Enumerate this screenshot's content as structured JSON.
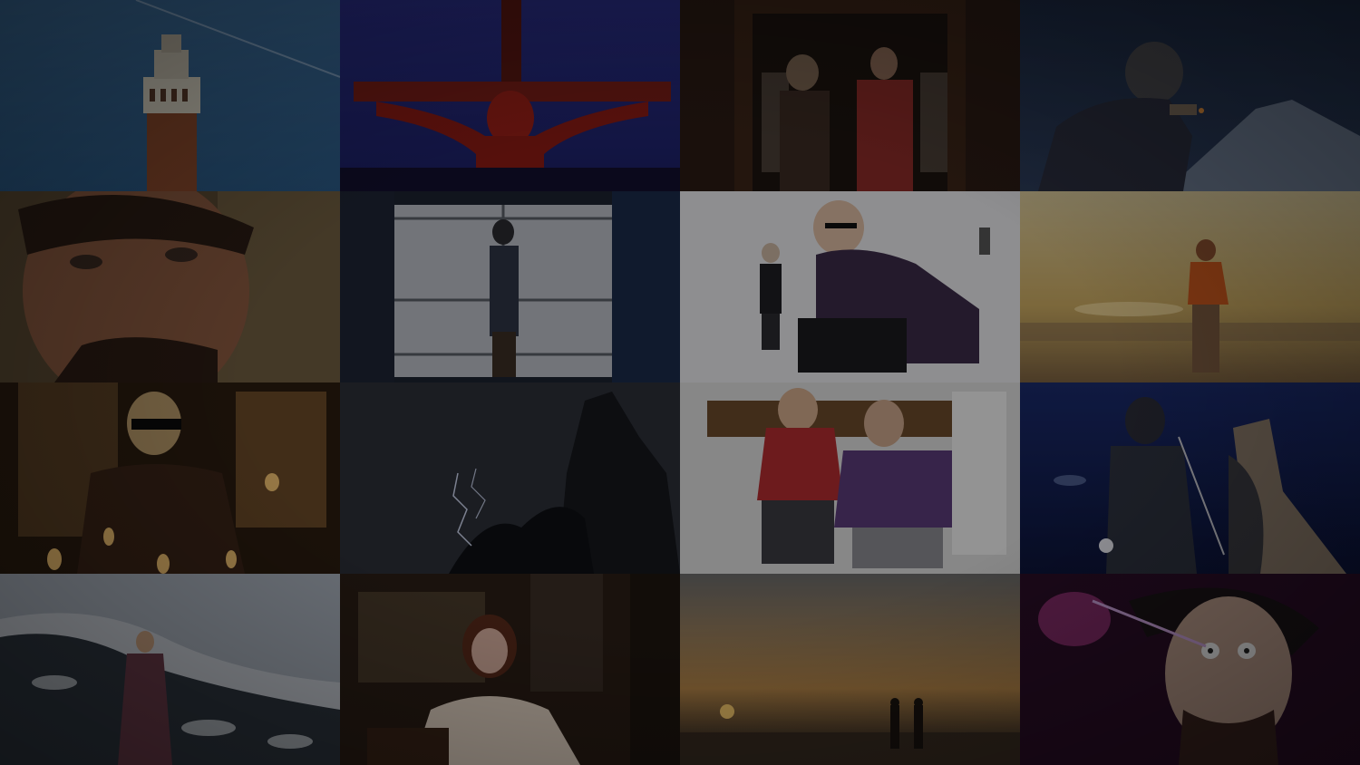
{
  "gallery": {
    "tiles": [
      {
        "id": "tower-sky",
        "accent": "#2f5f8e"
      },
      {
        "id": "crucifix-red-blue",
        "accent": "#a0221c"
      },
      {
        "id": "duo-in-doorway",
        "accent": "#7a2a28"
      },
      {
        "id": "smoker-night-mountains",
        "accent": "#1c2b44"
      },
      {
        "id": "man-closeup-mustache",
        "accent": "#5a4024"
      },
      {
        "id": "window-silhouette",
        "accent": "#8a8f98"
      },
      {
        "id": "crouching-man-sunglasses",
        "accent": "#d8d8dc"
      },
      {
        "id": "beach-runner-sunset",
        "accent": "#c7a45e"
      },
      {
        "id": "candles-sunglasses",
        "accent": "#6b4a22"
      },
      {
        "id": "lightning-rock",
        "accent": "#3a3f4a"
      },
      {
        "id": "two-friends-snow",
        "accent": "#b0343a"
      },
      {
        "id": "hooded-figure-tower-night",
        "accent": "#1a2a6a"
      },
      {
        "id": "snowy-mountain-coat",
        "accent": "#9aa2ad"
      },
      {
        "id": "woman-seated-interior",
        "accent": "#6a4a30"
      },
      {
        "id": "silhouettes-sunset-sea",
        "accent": "#b4884a"
      },
      {
        "id": "eyedrop-pink-light",
        "accent": "#8a2d6e"
      }
    ]
  }
}
